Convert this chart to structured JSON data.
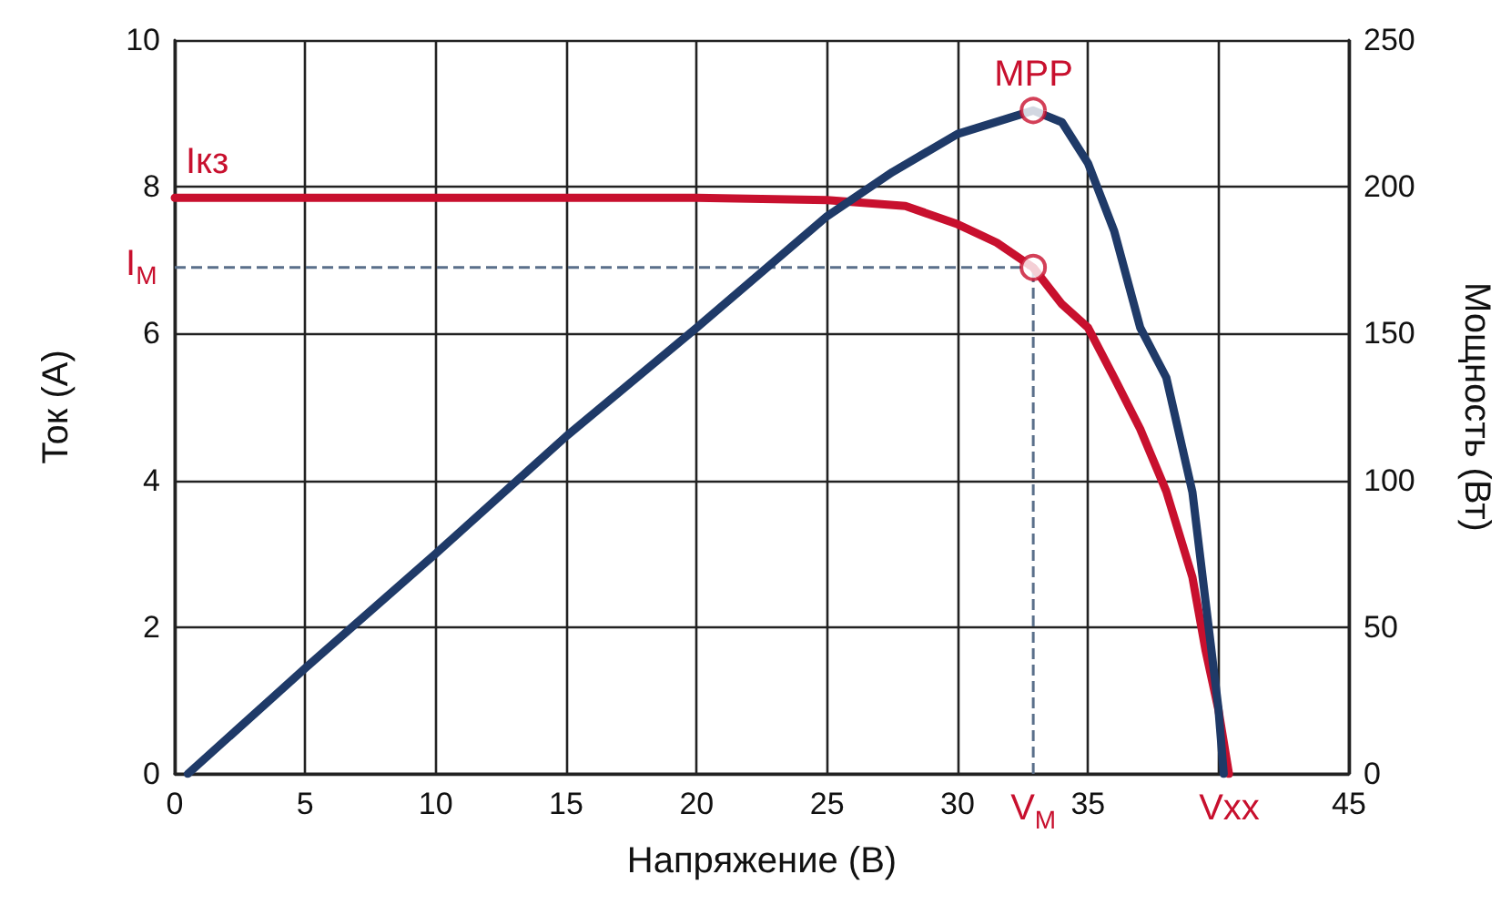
{
  "chart_data": {
    "type": "line",
    "xlabel": "Напряжение (В)",
    "ylabel": "Ток (А)",
    "y2label": "Мощность (Вт)",
    "xlim": [
      0,
      45
    ],
    "xticks": [
      0,
      5,
      10,
      15,
      20,
      25,
      30,
      35,
      {
        "value": 40,
        "label": null
      },
      45
    ],
    "ylim": [
      0,
      10
    ],
    "yticks": [
      0,
      2,
      4,
      6,
      8,
      10
    ],
    "y2lim": [
      0,
      250
    ],
    "y2ticks": [
      0,
      50,
      100,
      150,
      200,
      250
    ],
    "grid": true,
    "legend": false,
    "marker": "none",
    "line_style": "solid",
    "series": [
      {
        "name": "Iкз",
        "color": "#c8102e",
        "x": [
          0,
          5,
          10,
          15,
          20,
          25,
          28,
          30,
          31.5,
          32.9,
          34,
          35,
          36,
          37,
          38,
          39,
          39.5,
          40,
          40.4
        ],
        "values": [
          7.85,
          7.85,
          7.85,
          7.85,
          7.85,
          7.82,
          7.74,
          7.49,
          7.24,
          6.9,
          6.4,
          6.08,
          5.4,
          4.7,
          3.85,
          2.68,
          1.69,
          0.87,
          0
        ]
      },
      {
        "color": "#1f3a68",
        "axis": "y2",
        "x": [
          0.5,
          5,
          10,
          15,
          20,
          25,
          27.5,
          30,
          32.9,
          34,
          35,
          36,
          37,
          38,
          39,
          39.5,
          40,
          40.2
        ],
        "values": [
          0,
          36,
          75,
          115,
          152,
          190,
          205,
          218,
          226,
          222,
          208,
          185,
          152,
          135,
          96,
          59,
          22,
          0
        ]
      },
      {
        "type": "scatter",
        "marker": "circle",
        "color": "#c8102e",
        "x": [
          32.9
        ],
        "values": [
          6.9
        ]
      },
      {
        "name": "MPP",
        "type": "scatter",
        "marker": "circle",
        "color": "#c8102e",
        "axis": "y2",
        "x": [
          32.9
        ],
        "values": [
          226
        ]
      }
    ],
    "ref_lines": [
      {
        "axis": "y",
        "value": 6.9,
        "label": "I$_{М}$",
        "color": "#5a6f8a",
        "line_style": "dashed"
      },
      {
        "axis": "x",
        "value": 32.9,
        "label": "V$_{М}$",
        "color": "#5a6f8a",
        "line_style": "dashed"
      }
    ],
    "annotations": [
      {
        "text": "Vxx",
        "x": 40.4,
        "y": 0
      }
    ]
  }
}
